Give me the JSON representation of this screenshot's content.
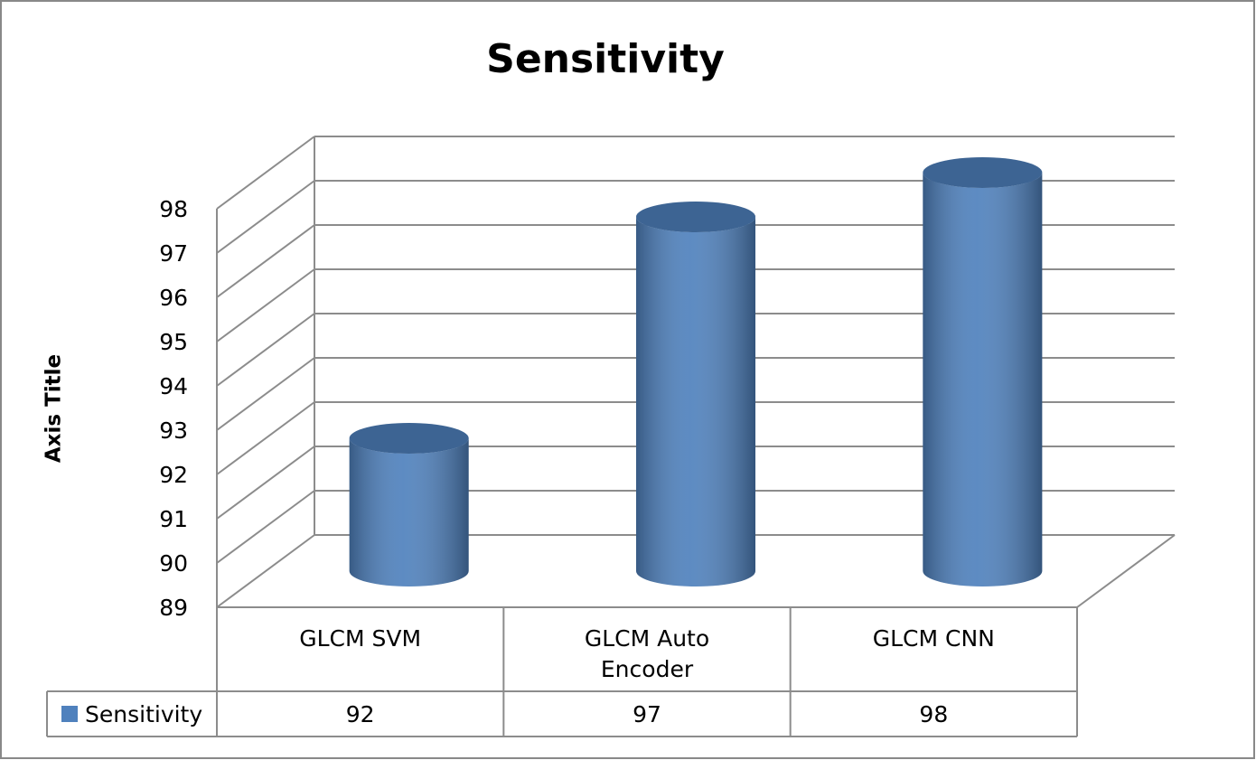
{
  "chart_data": {
    "type": "bar",
    "title": "Sensitivity",
    "y_axis_label": "Axis Title",
    "categories": [
      "GLCM SVM",
      "GLCM Auto Encoder",
      "GLCM CNN"
    ],
    "series": [
      {
        "name": "Sensitivity",
        "color": "#4f81bd",
        "values": [
          92,
          97,
          98
        ]
      }
    ],
    "ylim": [
      89,
      98
    ],
    "yticks": [
      89,
      90,
      91,
      92,
      93,
      94,
      95,
      96,
      97,
      98
    ],
    "grid": true,
    "data_table": true
  }
}
